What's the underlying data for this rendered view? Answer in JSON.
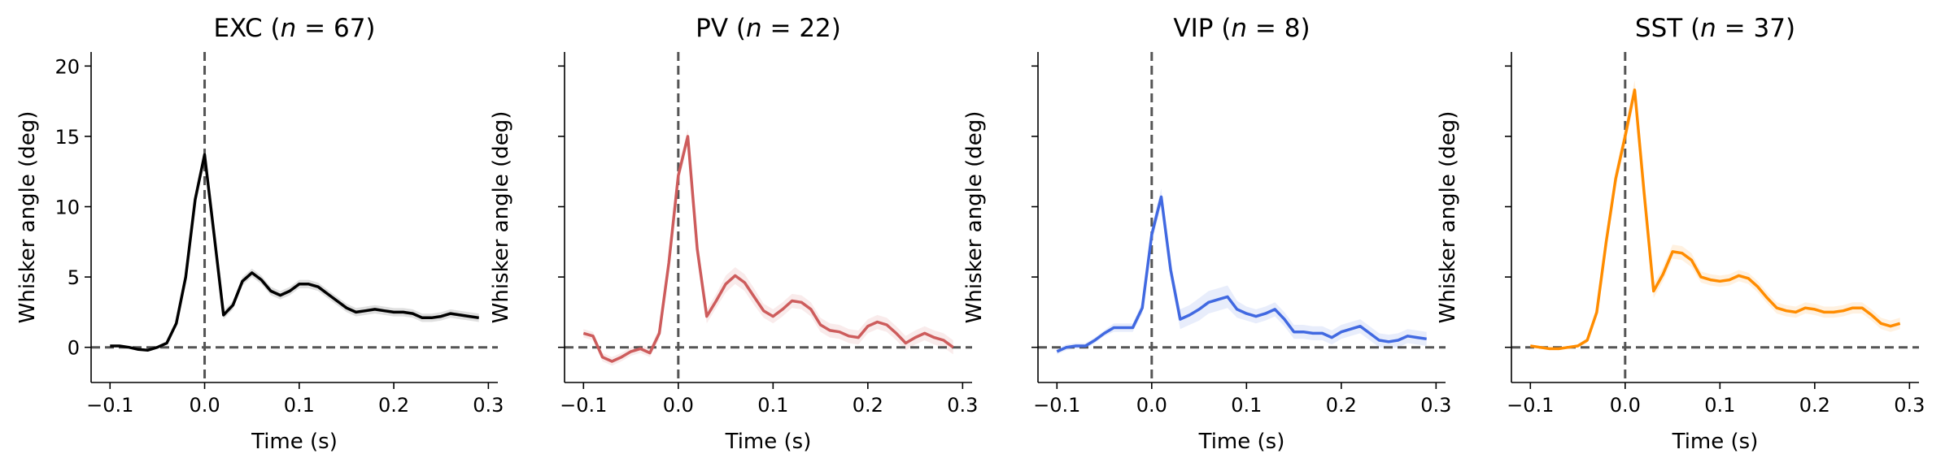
{
  "chart_data": [
    {
      "type": "line",
      "title_main": "EXC (",
      "title_n": "n",
      "title_rest": " = 67)",
      "xlabel": "Time (s)",
      "ylabel": "Whisker angle (deg)",
      "xlim": [
        -0.12,
        0.31
      ],
      "ylim": [
        -2.5,
        21
      ],
      "xticks": [
        -0.1,
        0.0,
        0.1,
        0.2,
        0.3
      ],
      "xtick_labels": [
        "−0.1",
        "0.0",
        "0.1",
        "0.2",
        "0.3"
      ],
      "yticks": [
        0,
        5,
        10,
        15,
        20
      ],
      "ytick_labels": [
        "0",
        "5",
        "10",
        "15",
        "20"
      ],
      "color": "#000000",
      "x": [
        -0.1,
        -0.09,
        -0.08,
        -0.07,
        -0.06,
        -0.05,
        -0.04,
        -0.03,
        -0.02,
        -0.01,
        0.0,
        0.01,
        0.02,
        0.03,
        0.04,
        0.05,
        0.06,
        0.07,
        0.08,
        0.09,
        0.1,
        0.11,
        0.12,
        0.13,
        0.14,
        0.15,
        0.16,
        0.17,
        0.18,
        0.19,
        0.2,
        0.21,
        0.22,
        0.23,
        0.24,
        0.25,
        0.26,
        0.27,
        0.28,
        0.29
      ],
      "values": [
        0.1,
        0.1,
        0.0,
        -0.15,
        -0.2,
        0.0,
        0.3,
        1.7,
        5.0,
        10.5,
        13.7,
        8.0,
        2.3,
        3.0,
        4.7,
        5.3,
        4.8,
        4.0,
        3.7,
        4.0,
        4.5,
        4.5,
        4.3,
        3.8,
        3.3,
        2.8,
        2.5,
        2.6,
        2.7,
        2.6,
        2.5,
        2.5,
        2.4,
        2.1,
        2.1,
        2.2,
        2.4,
        2.3,
        2.2,
        2.1
      ],
      "errors": [
        0.05,
        0.05,
        0.05,
        0.05,
        0.05,
        0.05,
        0.1,
        0.2,
        0.3,
        0.4,
        0.5,
        0.4,
        0.3,
        0.3,
        0.3,
        0.3,
        0.3,
        0.3,
        0.3,
        0.3,
        0.3,
        0.3,
        0.3,
        0.3,
        0.3,
        0.3,
        0.3,
        0.3,
        0.3,
        0.3,
        0.3,
        0.3,
        0.3,
        0.3,
        0.3,
        0.3,
        0.3,
        0.3,
        0.3,
        0.3
      ]
    },
    {
      "type": "line",
      "title_main": "PV (",
      "title_n": "n",
      "title_rest": " = 22)",
      "xlabel": "Time (s)",
      "ylabel": "Whisker angle (deg)",
      "xlim": [
        -0.12,
        0.31
      ],
      "ylim": [
        -2.5,
        21
      ],
      "xticks": [
        -0.1,
        0.0,
        0.1,
        0.2,
        0.3
      ],
      "xtick_labels": [
        "−0.1",
        "0.0",
        "0.1",
        "0.2",
        "0.3"
      ],
      "yticks": [
        0,
        5,
        10,
        15,
        20
      ],
      "ytick_labels": [
        "",
        "",
        "",
        "",
        ""
      ],
      "color": "#cd5c5c",
      "x": [
        -0.1,
        -0.09,
        -0.08,
        -0.07,
        -0.06,
        -0.05,
        -0.04,
        -0.03,
        -0.02,
        -0.01,
        0.0,
        0.01,
        0.02,
        0.03,
        0.04,
        0.05,
        0.06,
        0.07,
        0.08,
        0.09,
        0.1,
        0.11,
        0.12,
        0.13,
        0.14,
        0.15,
        0.16,
        0.17,
        0.18,
        0.19,
        0.2,
        0.21,
        0.22,
        0.23,
        0.24,
        0.25,
        0.26,
        0.27,
        0.28,
        0.29
      ],
      "values": [
        1.0,
        0.8,
        -0.7,
        -1.0,
        -0.7,
        -0.3,
        -0.1,
        -0.4,
        1.0,
        6.0,
        12.2,
        15.0,
        7.0,
        2.2,
        3.3,
        4.5,
        5.1,
        4.6,
        3.6,
        2.6,
        2.2,
        2.7,
        3.3,
        3.2,
        2.7,
        1.6,
        1.2,
        1.1,
        0.8,
        0.7,
        1.5,
        1.8,
        1.6,
        1.0,
        0.3,
        0.7,
        1.0,
        0.7,
        0.5,
        0.0
      ],
      "errors": [
        0.3,
        0.3,
        0.3,
        0.3,
        0.3,
        0.3,
        0.3,
        0.3,
        0.4,
        0.5,
        0.6,
        0.5,
        0.5,
        0.5,
        0.5,
        0.6,
        0.6,
        0.6,
        0.6,
        0.5,
        0.5,
        0.5,
        0.5,
        0.5,
        0.5,
        0.5,
        0.5,
        0.5,
        0.5,
        0.5,
        0.5,
        0.5,
        0.5,
        0.5,
        0.5,
        0.5,
        0.5,
        0.5,
        0.5,
        0.5
      ]
    },
    {
      "type": "line",
      "title_main": "VIP (",
      "title_n": "n",
      "title_rest": " = 8)",
      "xlabel": "Time (s)",
      "ylabel": "Whisker angle (deg)",
      "xlim": [
        -0.12,
        0.31
      ],
      "ylim": [
        -2.5,
        21
      ],
      "xticks": [
        -0.1,
        0.0,
        0.1,
        0.2,
        0.3
      ],
      "xtick_labels": [
        "−0.1",
        "0.0",
        "0.1",
        "0.2",
        "0.3"
      ],
      "yticks": [
        0,
        5,
        10,
        15,
        20
      ],
      "ytick_labels": [
        "",
        "",
        "",
        "",
        ""
      ],
      "color": "#4169e1",
      "x": [
        -0.1,
        -0.09,
        -0.08,
        -0.07,
        -0.06,
        -0.05,
        -0.04,
        -0.03,
        -0.02,
        -0.01,
        0.0,
        0.01,
        0.02,
        0.03,
        0.04,
        0.05,
        0.06,
        0.07,
        0.08,
        0.09,
        0.1,
        0.11,
        0.12,
        0.13,
        0.14,
        0.15,
        0.16,
        0.17,
        0.18,
        0.19,
        0.2,
        0.21,
        0.22,
        0.23,
        0.24,
        0.25,
        0.26,
        0.27,
        0.28,
        0.29
      ],
      "values": [
        -0.3,
        0.0,
        0.1,
        0.1,
        0.5,
        1.0,
        1.4,
        1.4,
        1.4,
        2.8,
        8.0,
        10.7,
        5.5,
        2.0,
        2.3,
        2.7,
        3.2,
        3.4,
        3.6,
        2.7,
        2.4,
        2.2,
        2.4,
        2.7,
        2.0,
        1.1,
        1.1,
        1.0,
        1.0,
        0.7,
        1.1,
        1.3,
        1.5,
        1.0,
        0.5,
        0.4,
        0.5,
        0.8,
        0.7,
        0.6
      ],
      "errors": [
        0.2,
        0.2,
        0.2,
        0.2,
        0.2,
        0.2,
        0.3,
        0.3,
        0.3,
        0.4,
        0.6,
        0.6,
        0.6,
        0.7,
        0.7,
        0.8,
        0.8,
        0.8,
        0.8,
        0.6,
        0.5,
        0.5,
        0.5,
        0.5,
        0.5,
        0.5,
        0.5,
        0.5,
        0.5,
        0.5,
        0.5,
        0.5,
        0.5,
        0.5,
        0.5,
        0.5,
        0.5,
        0.5,
        0.5,
        0.5
      ]
    },
    {
      "type": "line",
      "title_main": "SST (",
      "title_n": "n",
      "title_rest": " = 37)",
      "xlabel": "Time (s)",
      "ylabel": "Whisker angle (deg)",
      "xlim": [
        -0.12,
        0.31
      ],
      "ylim": [
        -2.5,
        21
      ],
      "xticks": [
        -0.1,
        0.0,
        0.1,
        0.2,
        0.3
      ],
      "xtick_labels": [
        "−0.1",
        "0.0",
        "0.1",
        "0.2",
        "0.3"
      ],
      "yticks": [
        0,
        5,
        10,
        15,
        20
      ],
      "ytick_labels": [
        "",
        "",
        "",
        "",
        ""
      ],
      "color": "#ff8c00",
      "x": [
        -0.1,
        -0.09,
        -0.08,
        -0.07,
        -0.06,
        -0.05,
        -0.04,
        -0.03,
        -0.02,
        -0.01,
        0.0,
        0.01,
        0.02,
        0.03,
        0.04,
        0.05,
        0.06,
        0.07,
        0.08,
        0.09,
        0.1,
        0.11,
        0.12,
        0.13,
        0.14,
        0.15,
        0.16,
        0.17,
        0.18,
        0.19,
        0.2,
        0.21,
        0.22,
        0.23,
        0.24,
        0.25,
        0.26,
        0.27,
        0.28,
        0.29
      ],
      "values": [
        0.1,
        0.0,
        -0.1,
        -0.1,
        0.0,
        0.1,
        0.5,
        2.5,
        7.5,
        12.0,
        15.0,
        18.3,
        11.0,
        4.0,
        5.2,
        6.8,
        6.7,
        6.2,
        5.0,
        4.8,
        4.7,
        4.8,
        5.1,
        4.9,
        4.3,
        3.5,
        2.8,
        2.6,
        2.5,
        2.8,
        2.7,
        2.5,
        2.5,
        2.6,
        2.8,
        2.8,
        2.3,
        1.7,
        1.5,
        1.7
      ],
      "errors": [
        0.1,
        0.1,
        0.1,
        0.1,
        0.1,
        0.1,
        0.2,
        0.3,
        0.5,
        0.6,
        0.7,
        0.7,
        0.6,
        0.5,
        0.5,
        0.5,
        0.5,
        0.5,
        0.4,
        0.4,
        0.4,
        0.4,
        0.4,
        0.4,
        0.4,
        0.4,
        0.4,
        0.4,
        0.4,
        0.4,
        0.4,
        0.4,
        0.4,
        0.4,
        0.4,
        0.4,
        0.4,
        0.4,
        0.4,
        0.4
      ]
    }
  ]
}
